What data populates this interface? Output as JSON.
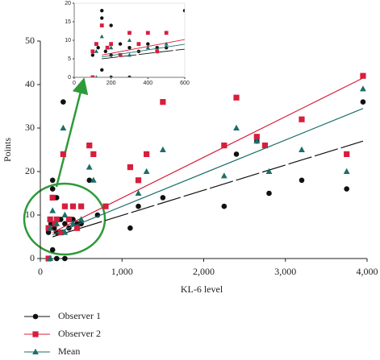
{
  "chart_data": {
    "type": "scatter",
    "x_label": "KL-6 level",
    "y_label": "Points",
    "xlim": [
      0,
      4000
    ],
    "ylim": [
      0,
      50
    ],
    "xticks": [
      0,
      {
        "value": 1000,
        "label": "1,000"
      },
      {
        "value": 2000,
        "label": "2,000"
      },
      {
        "value": 3000,
        "label": "3,000"
      },
      {
        "value": 4000,
        "label": "4,000"
      }
    ],
    "yticks": [
      0,
      10,
      20,
      30,
      40,
      50
    ],
    "grid": false,
    "legend": "bottom-left",
    "inset": {
      "xlim": [
        0,
        600
      ],
      "ylim": [
        0,
        20
      ],
      "xticks": [
        0,
        200,
        400,
        600
      ],
      "yticks": [
        0,
        5,
        10,
        15,
        20
      ]
    },
    "series": [
      {
        "name": "Observer 1",
        "color": "#111111",
        "marker": "circle",
        "line_style": "dashed",
        "x": [
          150,
          150,
          200,
          280,
          600,
          700,
          1100,
          1200,
          1500,
          2250,
          2400,
          2650,
          2800,
          3200,
          3750,
          3950,
          100,
          130,
          170,
          200,
          250,
          300,
          350,
          400,
          450,
          500,
          100,
          200,
          300,
          150
        ],
        "values": [
          18,
          16,
          14,
          36,
          18,
          10,
          7,
          12,
          14,
          12,
          24,
          27,
          15,
          18,
          16,
          36,
          6,
          8,
          7,
          6,
          9,
          8,
          7,
          9,
          8,
          8,
          0,
          0,
          0,
          2
        ],
        "trend": {
          "x": [
            150,
            3950
          ],
          "y": [
            5,
            27
          ]
        }
      },
      {
        "name": "Observer 2",
        "color": "#d81e3c",
        "marker": "square",
        "line_style": "solid",
        "x": [
          120,
          150,
          200,
          280,
          300,
          400,
          500,
          600,
          650,
          800,
          1100,
          1200,
          1300,
          1500,
          2250,
          2400,
          2650,
          2750,
          3200,
          3750,
          3950,
          100,
          180,
          250,
          350,
          450,
          100
        ],
        "values": [
          9,
          14,
          9,
          24,
          12,
          12,
          12,
          26,
          24,
          12,
          21,
          18,
          24,
          36,
          26,
          37,
          28,
          26,
          32,
          24,
          42,
          7,
          8,
          6,
          9,
          7,
          0
        ],
        "trend": {
          "x": [
            150,
            3950
          ],
          "y": [
            6,
            41.5
          ]
        }
      },
      {
        "name": "Mean",
        "color": "#1b6e6a",
        "marker": "triangle",
        "line_style": "solid",
        "x": [
          150,
          280,
          300,
          600,
          650,
          1200,
          1300,
          1500,
          2250,
          2400,
          2650,
          2800,
          3200,
          3750,
          3950,
          120,
          200,
          300,
          400,
          500,
          120
        ],
        "values": [
          11,
          30,
          10,
          21,
          18,
          15,
          20,
          25,
          19,
          30,
          27,
          20,
          25,
          20,
          39,
          7,
          8,
          6,
          8,
          9,
          0
        ],
        "trend": {
          "x": [
            150,
            3950
          ],
          "y": [
            5.5,
            34.5
          ]
        }
      }
    ]
  }
}
